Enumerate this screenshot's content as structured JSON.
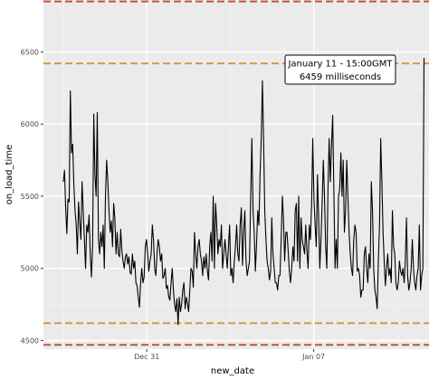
{
  "chart_data": {
    "type": "line",
    "xlabel": "new_date",
    "ylabel": "on_load_time",
    "x_ticks": [
      {
        "label": "Dec 31",
        "date": "2018-12-31"
      },
      {
        "label": "Jan 07",
        "date": "2019-01-07"
      }
    ],
    "y_ticks": [
      4500,
      5000,
      5500,
      6000,
      6500
    ],
    "ylim": [
      4440,
      6860
    ],
    "xlim": [
      "2018-12-26T16:00",
      "2019-01-11T20:00"
    ],
    "grid": true,
    "series": [
      {
        "color": "#000000",
        "x_start": "2018-12-27T12:00",
        "x_end": "2019-01-11T15:00",
        "values": [
          5600,
          5680,
          5420,
          5240,
          5480,
          5460,
          6230,
          5800,
          5860,
          5580,
          5400,
          5300,
          5100,
          5460,
          5320,
          5200,
          5600,
          5400,
          5200,
          5000,
          5300,
          5250,
          5370,
          5100,
          4940,
          5150,
          6070,
          5650,
          5500,
          6080,
          5200,
          5100,
          5250,
          5150,
          5300,
          5000,
          5500,
          5750,
          5600,
          5400,
          5250,
          5330,
          5150,
          5450,
          5350,
          5100,
          5250,
          5100,
          5080,
          5270,
          5120,
          5050,
          5000,
          5080,
          5100,
          5030,
          5080,
          4970,
          4960,
          5100,
          5000,
          5050,
          4900,
          4880,
          4800,
          4730,
          4900,
          5000,
          4900,
          4940,
          5150,
          5200,
          5100,
          4980,
          5050,
          5100,
          5300,
          5200,
          5000,
          4950,
          5100,
          5200,
          5150,
          5050,
          5100,
          4930,
          4950,
          5000,
          4860,
          4880,
          4800,
          4780,
          4900,
          5000,
          4850,
          4750,
          4700,
          4790,
          4610,
          4800,
          4700,
          4750,
          4850,
          4900,
          4720,
          4800,
          4760,
          4700,
          4850,
          5000,
          4980,
          4870,
          5250,
          5100,
          5000,
          5150,
          5200,
          5100,
          5050,
          4950,
          5080,
          5000,
          5100,
          4980,
          4920,
          5150,
          5250,
          5050,
          5500,
          5000,
          5450,
          5300,
          5100,
          5200,
          5150,
          5300,
          5000,
          5100,
          5200,
          5100,
          5000,
          5150,
          5300,
          4950,
          5000,
          4900,
          5050,
          5150,
          5300,
          5100,
          5050,
          5300,
          5420,
          5020,
          5250,
          5400,
          5050,
          4950,
          5000,
          5050,
          5500,
          5900,
          5400,
          5250,
          4980,
          5170,
          5400,
          5300,
          5650,
          5900,
          6300,
          5900,
          5400,
          5200,
          5050,
          5000,
          4920,
          4980,
          5350,
          5100,
          5000,
          4900,
          4900,
          4850,
          4950,
          4950,
          5180,
          5500,
          5350,
          5050,
          5250,
          5250,
          5120,
          4980,
          4900,
          5000,
          5150,
          5050,
          5400,
          5450,
          5050,
          5500,
          5000,
          5350,
          5200,
          5150,
          5100,
          5300,
          5120,
          5000,
          5300,
          5200,
          5450,
          5900,
          5480,
          5300,
          5150,
          5650,
          5350,
          5000,
          5200,
          5450,
          5750,
          5500,
          5150,
          5000,
          5550,
          5900,
          5600,
          5850,
          6060,
          5550,
          5000,
          5200,
          5000,
          5500,
          5550,
          5800,
          5500,
          5750,
          5250,
          5400,
          5750,
          5500,
          5250,
          5100,
          5000,
          4950,
          5200,
          5300,
          5250,
          4980,
          5000,
          4950,
          4800,
          4850,
          4850,
          5100,
          5150,
          5000,
          4900,
          5100,
          5000,
          5600,
          5400,
          5000,
          4850,
          4800,
          4720,
          5050,
          5300,
          5900,
          5600,
          5250,
          5050,
          4880,
          5000,
          5100,
          4950,
          5000,
          4900,
          5400,
          5150,
          5100,
          4900,
          4850,
          4900,
          5050,
          4980,
          4950,
          5000,
          4900,
          5050,
          5350,
          4950,
          4850,
          4900,
          5000,
          5200,
          5000,
          4900,
          4850,
          4950,
          5000,
          5300,
          4850,
          4950,
          5000,
          6459
        ]
      }
    ],
    "reference_lines": [
      {
        "value": 6850,
        "color": "#c0553a"
      },
      {
        "value": 6420,
        "color": "#d49a47"
      },
      {
        "value": 4620,
        "color": "#d49a47"
      },
      {
        "value": 4470,
        "color": "#c0553a"
      }
    ],
    "annotation": {
      "line1": "January 11 - 15:00GMT",
      "line2": "6459 milliseconds"
    }
  }
}
